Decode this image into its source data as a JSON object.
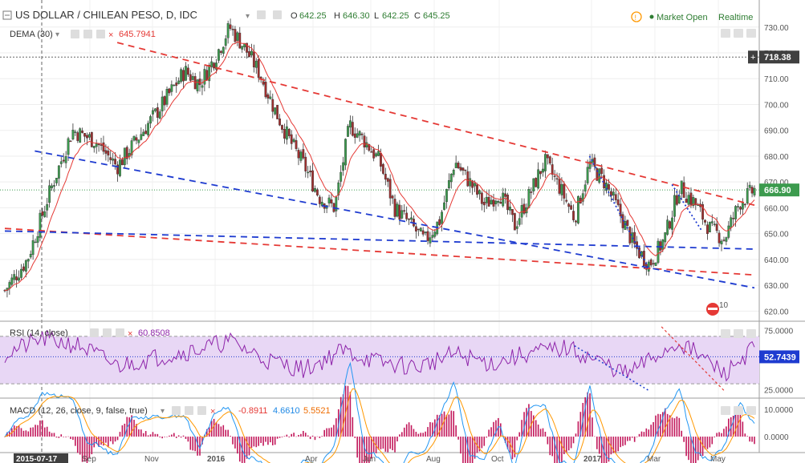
{
  "header": {
    "symbol_title": "US DOLLAR / CHILEAN PESO, D, IDC",
    "ohlc": {
      "o_label": "O",
      "o_value": "642.25",
      "h_label": "H",
      "h_value": "646.30",
      "l_label": "L",
      "l_value": "642.25",
      "c_label": "C",
      "c_value": "645.25"
    },
    "status_icon": "info-circle-icon",
    "market_status": "Market Open",
    "realtime": "Realtime"
  },
  "colors": {
    "up": "#26a69a",
    "down": "#ef5350",
    "candle_up": "#3c9b4e",
    "candle_down": "#9e2f2f",
    "dema": "#e53935",
    "trend_red": "#e53935",
    "trend_blue": "#1e3bd0",
    "rsi_line": "#8e24aa",
    "rsi_band": "#e8d7f5",
    "macd_line": "#2196f3",
    "signal_line": "#ff9800",
    "hist": "#c2185b",
    "green_text": "#2e7d32",
    "orange": "#ff9800"
  },
  "chart_data": [
    {
      "type": "candlestick",
      "name": "price",
      "title": "US DOLLAR / CHILEAN PESO, D, IDC",
      "ylim": [
        617,
        738
      ],
      "y_ticks": [
        "730.00",
        "720.00",
        "710.00",
        "700.00",
        "690.00",
        "680.00",
        "670.00",
        "660.00",
        "650.00",
        "640.00",
        "630.00",
        "620.00"
      ],
      "x_ticks": [
        "2015-07-17",
        "Sep",
        "Nov",
        "2016",
        "Apr",
        "Jun",
        "Aug",
        "Oct",
        "2017",
        "Mar",
        "May"
      ],
      "cursor_date": "2015-07-17",
      "horizontal_line_label": "718.38",
      "last_price_label": "666.90",
      "last_price": 666.9,
      "horizontal_line_price": 718.38,
      "events_count": "10",
      "grid": true,
      "close_path": [
        [
          0,
          628
        ],
        [
          0.03,
          640
        ],
        [
          0.06,
          666
        ],
        [
          0.09,
          690
        ],
        [
          0.12,
          686
        ],
        [
          0.15,
          676
        ],
        [
          0.18,
          688
        ],
        [
          0.21,
          700
        ],
        [
          0.24,
          713
        ],
        [
          0.26,
          708
        ],
        [
          0.28,
          718
        ],
        [
          0.3,
          730
        ],
        [
          0.32,
          722
        ],
        [
          0.34,
          712
        ],
        [
          0.36,
          698
        ],
        [
          0.38,
          686
        ],
        [
          0.4,
          676
        ],
        [
          0.42,
          664
        ],
        [
          0.44,
          660
        ],
        [
          0.46,
          692
        ],
        [
          0.48,
          686
        ],
        [
          0.5,
          678
        ],
        [
          0.52,
          660
        ],
        [
          0.54,
          654
        ],
        [
          0.56,
          647
        ],
        [
          0.58,
          655
        ],
        [
          0.6,
          678
        ],
        [
          0.62,
          670
        ],
        [
          0.64,
          661
        ],
        [
          0.66,
          666
        ],
        [
          0.68,
          653
        ],
        [
          0.7,
          665
        ],
        [
          0.72,
          678
        ],
        [
          0.74,
          668
        ],
        [
          0.76,
          656
        ],
        [
          0.78,
          677
        ],
        [
          0.8,
          670
        ],
        [
          0.82,
          658
        ],
        [
          0.84,
          645
        ],
        [
          0.86,
          638
        ],
        [
          0.88,
          648
        ],
        [
          0.9,
          668
        ],
        [
          0.92,
          662
        ],
        [
          0.94,
          652
        ],
        [
          0.96,
          648
        ],
        [
          0.98,
          662
        ],
        [
          1,
          667
        ]
      ],
      "dema": {
        "label": "DEMA (30)",
        "value": "645.7941"
      },
      "trendlines": [
        {
          "color": "red",
          "style": "dashed",
          "from": [
            0.15,
            724
          ],
          "to": [
            1,
            661
          ]
        },
        {
          "color": "red",
          "style": "dashed",
          "from": [
            0,
            652
          ],
          "to": [
            1,
            634
          ]
        },
        {
          "color": "blue",
          "style": "dashed",
          "from": [
            0,
            651
          ],
          "to": [
            1,
            644
          ]
        },
        {
          "color": "blue",
          "style": "dashed",
          "from": [
            0.04,
            682
          ],
          "to": [
            1,
            629
          ]
        },
        {
          "color": "blue",
          "style": "dotted",
          "from": [
            0.78,
            680
          ],
          "to": [
            0.86,
            636
          ]
        },
        {
          "color": "blue",
          "style": "dotted",
          "from": [
            0.89,
            669
          ],
          "to": [
            0.93,
            651
          ]
        }
      ]
    },
    {
      "type": "line",
      "name": "rsi",
      "label": "RSI (14, close)",
      "value": "60.8508",
      "ylim": [
        20,
        80
      ],
      "y_ticks": [
        "75.0000",
        "25.0000"
      ],
      "current_label": "52.7439",
      "current": 52.7439,
      "band": [
        30,
        70
      ],
      "path": [
        [
          0,
          55
        ],
        [
          0.05,
          68
        ],
        [
          0.1,
          62
        ],
        [
          0.15,
          45
        ],
        [
          0.2,
          52
        ],
        [
          0.25,
          58
        ],
        [
          0.3,
          66
        ],
        [
          0.35,
          50
        ],
        [
          0.4,
          42
        ],
        [
          0.45,
          58
        ],
        [
          0.5,
          48
        ],
        [
          0.55,
          44
        ],
        [
          0.6,
          55
        ],
        [
          0.65,
          47
        ],
        [
          0.7,
          56
        ],
        [
          0.75,
          60
        ],
        [
          0.8,
          47
        ],
        [
          0.83,
          38
        ],
        [
          0.86,
          50
        ],
        [
          0.9,
          65
        ],
        [
          0.94,
          48
        ],
        [
          0.96,
          38
        ],
        [
          1,
          61
        ]
      ]
    },
    {
      "type": "bar",
      "name": "macd",
      "label": "MACD (12, 26, close, 9, false, true)",
      "values": [
        "-0.8911",
        "4.6610",
        "5.5521"
      ],
      "ylim": [
        -5,
        13
      ],
      "y_ticks": [
        "10.0000",
        "0.0000"
      ]
    }
  ]
}
